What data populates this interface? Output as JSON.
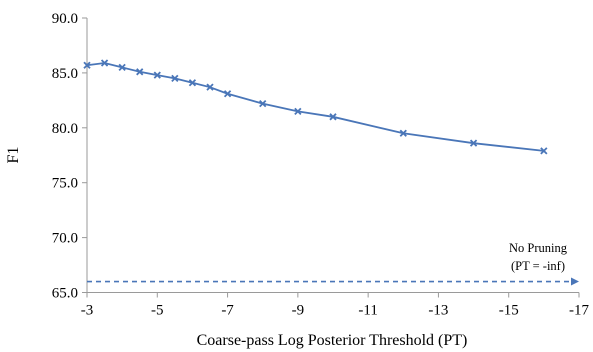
{
  "chart_data": {
    "type": "line",
    "xlabel": "Coarse-pass Log Posterior Threshold (PT)",
    "ylabel": "F1",
    "xlim": [
      -3,
      -17
    ],
    "ylim": [
      65.0,
      90.0
    ],
    "x_ticks": [
      -3,
      -5,
      -7,
      -9,
      -11,
      -13,
      -15,
      -17
    ],
    "x_tick_labels": [
      "-3",
      "-5",
      "-7",
      "-9",
      "-11",
      "-13",
      "-15",
      "-17"
    ],
    "y_ticks": [
      65.0,
      70.0,
      75.0,
      80.0,
      85.0,
      90.0
    ],
    "y_tick_labels": [
      "65.0",
      "70.0",
      "75.0",
      "80.0",
      "85.0",
      "90.0"
    ],
    "grid": false,
    "legend": "none",
    "series": [
      {
        "color": "#4a76b8",
        "marker": "x",
        "x": [
          -3,
          -3.5,
          -4,
          -4.5,
          -5,
          -5.5,
          -6,
          -6.5,
          -7,
          -8,
          -9,
          -10,
          -12,
          -14,
          -16
        ],
        "y": [
          85.7,
          85.9,
          85.5,
          85.1,
          84.8,
          84.5,
          84.1,
          83.7,
          83.1,
          82.2,
          81.5,
          81.0,
          79.5,
          78.6,
          77.9
        ]
      }
    ],
    "reference_line": {
      "y": 66.0,
      "style": "dashed",
      "color": "#4a76b8",
      "label_line1": "No Pruning",
      "label_line2": "(PT = -inf)"
    }
  }
}
